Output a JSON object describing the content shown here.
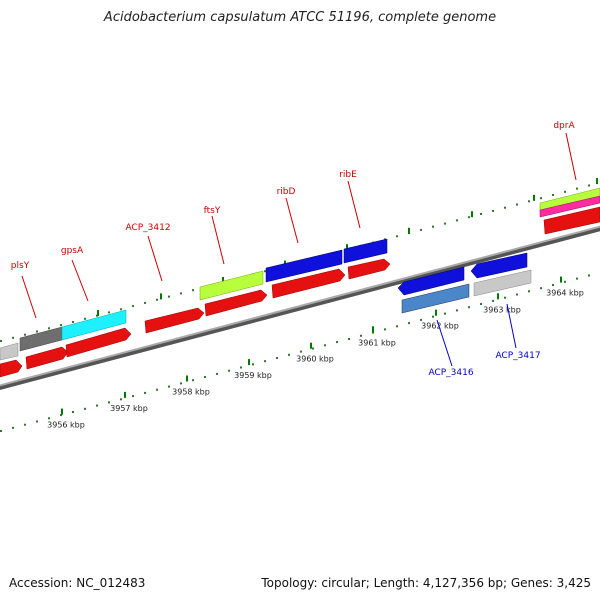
{
  "title": "Acidobacterium capsulatum ATCC 51196, complete genome",
  "footer": {
    "accession": "Accession: NC_012483",
    "summary": "Topology: circular; Length: 4,127,356 bp; Genes: 3,425"
  },
  "colors": {
    "label_forward": "#cc0000",
    "label_reverse": "#0000cc",
    "tick": "#007700",
    "backbone": "#777777"
  },
  "ticks": [
    {
      "label": "3956 kbp"
    },
    {
      "label": "3957 kbp"
    },
    {
      "label": "3958 kbp"
    },
    {
      "label": "3959 kbp"
    },
    {
      "label": "3960 kbp"
    },
    {
      "label": "3961 kbp"
    },
    {
      "label": "3962 kbp"
    },
    {
      "label": "3963 kbp"
    },
    {
      "label": "3964 kbp"
    }
  ],
  "gene_labels": [
    {
      "label": "plsY",
      "strand": "forward"
    },
    {
      "label": "gpsA",
      "strand": "forward"
    },
    {
      "label": "ACP_3412",
      "strand": "forward"
    },
    {
      "label": "ftsY",
      "strand": "forward"
    },
    {
      "label": "ribD",
      "strand": "forward"
    },
    {
      "label": "ribE",
      "strand": "forward"
    },
    {
      "label": "dprA",
      "strand": "forward"
    },
    {
      "label": "ACP_3416",
      "strand": "reverse"
    },
    {
      "label": "ACP_3417",
      "strand": "reverse"
    }
  ]
}
